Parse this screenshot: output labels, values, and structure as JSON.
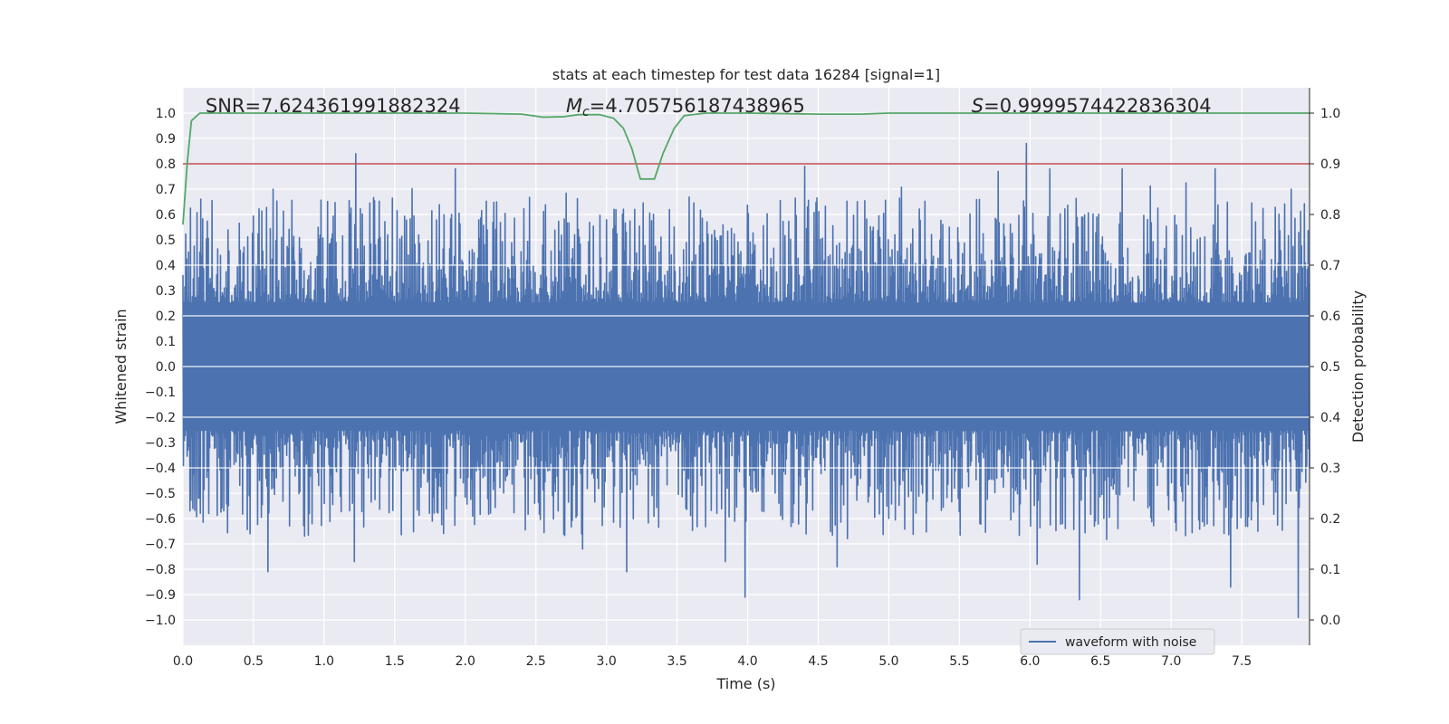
{
  "chart_data": {
    "type": "line",
    "title": "stats at each timestep for test data 16284 [signal=1]",
    "xlabel": "Time (s)",
    "ylabel": "Whitened strain",
    "y2label": "Detection probability",
    "xlim": [
      0.0,
      7.98
    ],
    "ylim": [
      -1.1,
      1.1
    ],
    "y2lim": [
      -0.05,
      1.05
    ],
    "x_ticks": [
      0.0,
      0.5,
      1.0,
      1.5,
      2.0,
      2.5,
      3.0,
      3.5,
      4.0,
      4.5,
      5.0,
      5.5,
      6.0,
      6.5,
      7.0,
      7.5
    ],
    "x_tick_labels": [
      "0.0",
      "0.5",
      "1.0",
      "1.5",
      "2.0",
      "2.5",
      "3.0",
      "3.5",
      "4.0",
      "4.5",
      "5.0",
      "5.5",
      "6.0",
      "6.5",
      "7.0",
      "7.5"
    ],
    "y_ticks": [
      -1.0,
      -0.9,
      -0.8,
      -0.7,
      -0.6,
      -0.5,
      -0.4,
      -0.3,
      -0.2,
      -0.1,
      0.0,
      0.1,
      0.2,
      0.3,
      0.4,
      0.5,
      0.6,
      0.7,
      0.8,
      0.9,
      1.0
    ],
    "y_tick_labels": [
      "−1.0",
      "−0.9",
      "−0.8",
      "−0.7",
      "−0.6",
      "−0.5",
      "−0.4",
      "−0.3",
      "−0.2",
      "−0.1",
      "0.0",
      "0.1",
      "0.2",
      "0.3",
      "0.4",
      "0.5",
      "0.6",
      "0.7",
      "0.8",
      "0.9",
      "1.0"
    ],
    "y2_ticks": [
      0.0,
      0.1,
      0.2,
      0.3,
      0.4,
      0.5,
      0.6,
      0.7,
      0.8,
      0.9,
      1.0
    ],
    "y2_tick_labels": [
      "0.0",
      "0.1",
      "0.2",
      "0.3",
      "0.4",
      "0.5",
      "0.6",
      "0.7",
      "0.8",
      "0.9",
      "1.0"
    ],
    "grid": true,
    "legend": {
      "entries": [
        "waveform with noise"
      ],
      "placement": "lower-right"
    },
    "annotations": [
      {
        "prefix": "SNR=",
        "value": "7.624361991882324",
        "x_frac": 0.02
      },
      {
        "prefix": "M",
        "sub": "c",
        "suffix": "=",
        "value": "4.705756187438965",
        "x_frac": 0.34
      },
      {
        "prefix": "S",
        "suffix": "=",
        "value": "0.9999574422836304",
        "x_frac": 0.7
      }
    ],
    "threshold": {
      "axis": "y2",
      "value": 0.9
    },
    "series": [
      {
        "name": "waveform with noise",
        "axis": "y",
        "kind": "dense-noise",
        "sample_count": 2400,
        "seed": 16284,
        "core_amplitude": 0.2,
        "peaks": [
          {
            "x": 1.22,
            "value": 0.84
          },
          {
            "x": 5.97,
            "value": 0.88
          },
          {
            "x": 4.4,
            "value": 0.79
          },
          {
            "x": 1.93,
            "value": 0.78
          },
          {
            "x": 6.14,
            "value": 0.78
          },
          {
            "x": 6.65,
            "value": 0.78
          },
          {
            "x": 5.77,
            "value": 0.77
          },
          {
            "x": 7.31,
            "value": 0.78
          },
          {
            "x": 0.64,
            "value": 0.7
          },
          {
            "x": 7.85,
            "value": 0.7
          },
          {
            "x": 7.9,
            "value": -0.99
          },
          {
            "x": 6.35,
            "value": -0.92
          },
          {
            "x": 3.98,
            "value": -0.91
          },
          {
            "x": 0.6,
            "value": -0.81
          },
          {
            "x": 7.42,
            "value": -0.87
          },
          {
            "x": 3.14,
            "value": -0.81
          },
          {
            "x": 1.21,
            "value": -0.77
          },
          {
            "x": 3.84,
            "value": -0.77
          },
          {
            "x": 4.63,
            "value": -0.79
          },
          {
            "x": 6.05,
            "value": -0.78
          },
          {
            "x": 2.83,
            "value": -0.72
          }
        ]
      },
      {
        "name": "detection probability",
        "axis": "y2",
        "x": [
          0.0,
          0.03,
          0.06,
          0.12,
          0.5,
          1.0,
          1.5,
          2.0,
          2.4,
          2.55,
          2.7,
          2.8,
          2.95,
          3.05,
          3.12,
          3.18,
          3.24,
          3.29,
          3.34,
          3.4,
          3.48,
          3.55,
          3.7,
          4.0,
          4.5,
          4.8,
          5.0,
          5.5,
          6.0,
          6.5,
          7.0,
          7.5,
          7.98
        ],
        "values": [
          0.78,
          0.9,
          0.985,
          1.0,
          1.0,
          1.0,
          1.0,
          1.0,
          0.998,
          0.992,
          0.993,
          0.997,
          0.997,
          0.99,
          0.97,
          0.93,
          0.87,
          0.87,
          0.87,
          0.92,
          0.97,
          0.995,
          1.0,
          1.0,
          0.998,
          0.998,
          1.0,
          1.0,
          1.0,
          1.0,
          1.0,
          1.0,
          1.0
        ]
      }
    ],
    "colors": {
      "background": "#eaeaf2",
      "grid": "#ffffff",
      "waveform": "#4c72b0",
      "probability": "#55a868",
      "threshold": "#c44e52",
      "text": "#262626"
    }
  }
}
